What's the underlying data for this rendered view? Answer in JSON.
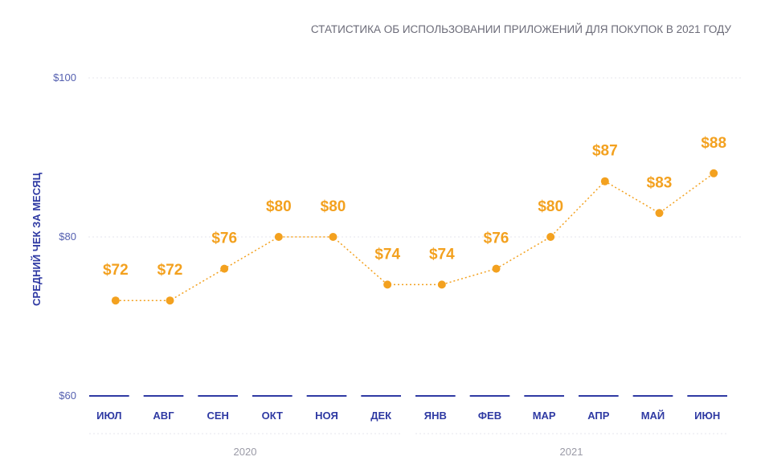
{
  "chart_data": {
    "type": "line",
    "title": "СТАТИСТИКА ОБ ИСПОЛЬЗОВАНИИ ПРИЛОЖЕНИЙ ДЛЯ ПОКУПОК В 2021 ГОДУ",
    "ylabel": "СРЕДНИЙ ЧЕК ЗА МЕСЯЦ",
    "xlabel": "",
    "ylim": [
      60,
      100
    ],
    "yticks": [
      60,
      80,
      100
    ],
    "ytick_labels": [
      "$60",
      "$80",
      "$100"
    ],
    "categories": [
      "ИЮЛ",
      "АВГ",
      "СЕН",
      "ОКТ",
      "НОЯ",
      "ДЕК",
      "ЯНВ",
      "ФЕВ",
      "МАР",
      "АПР",
      "МАЙ",
      "ИЮН"
    ],
    "year_groups": [
      {
        "label": "2020",
        "start": 0,
        "end": 5
      },
      {
        "label": "2021",
        "start": 6,
        "end": 11
      }
    ],
    "series": [
      {
        "values": [
          72,
          72,
          76,
          80,
          80,
          74,
          74,
          76,
          80,
          87,
          83,
          88
        ],
        "labels": [
          "$72",
          "$72",
          "$76",
          "$80",
          "$80",
          "$74",
          "$74",
          "$76",
          "$80",
          "$87",
          "$83",
          "$88"
        ]
      }
    ],
    "grid": true,
    "colors": {
      "line": "#f3a11f",
      "axis": "#2f3aa3",
      "grid": "#e6e6ee",
      "text": "#6b6b78"
    }
  }
}
